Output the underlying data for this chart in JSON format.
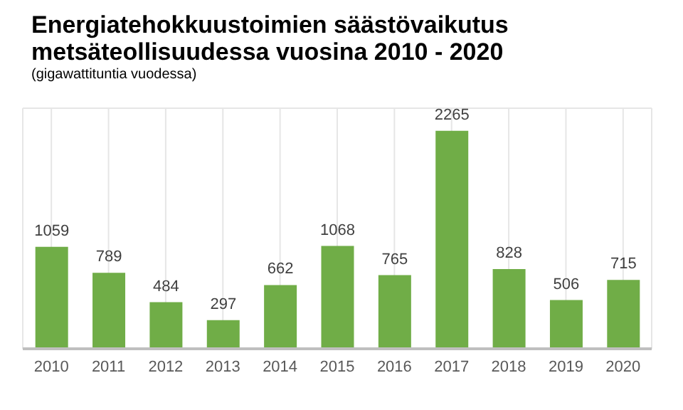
{
  "chart_data": {
    "type": "bar",
    "title": "Energiatehokkuustoimien säästövaikutus metsäteollisuudessa vuosina 2010 - 2020",
    "subtitle": "(gigawattituntia vuodessa)",
    "categories": [
      "2010",
      "2011",
      "2012",
      "2013",
      "2014",
      "2015",
      "2016",
      "2017",
      "2018",
      "2019",
      "2020"
    ],
    "values": [
      1059,
      789,
      484,
      297,
      662,
      1068,
      765,
      2265,
      828,
      506,
      715
    ],
    "color": "#70ad47",
    "tick_labels": "x",
    "grid": true,
    "data_labels": true
  }
}
